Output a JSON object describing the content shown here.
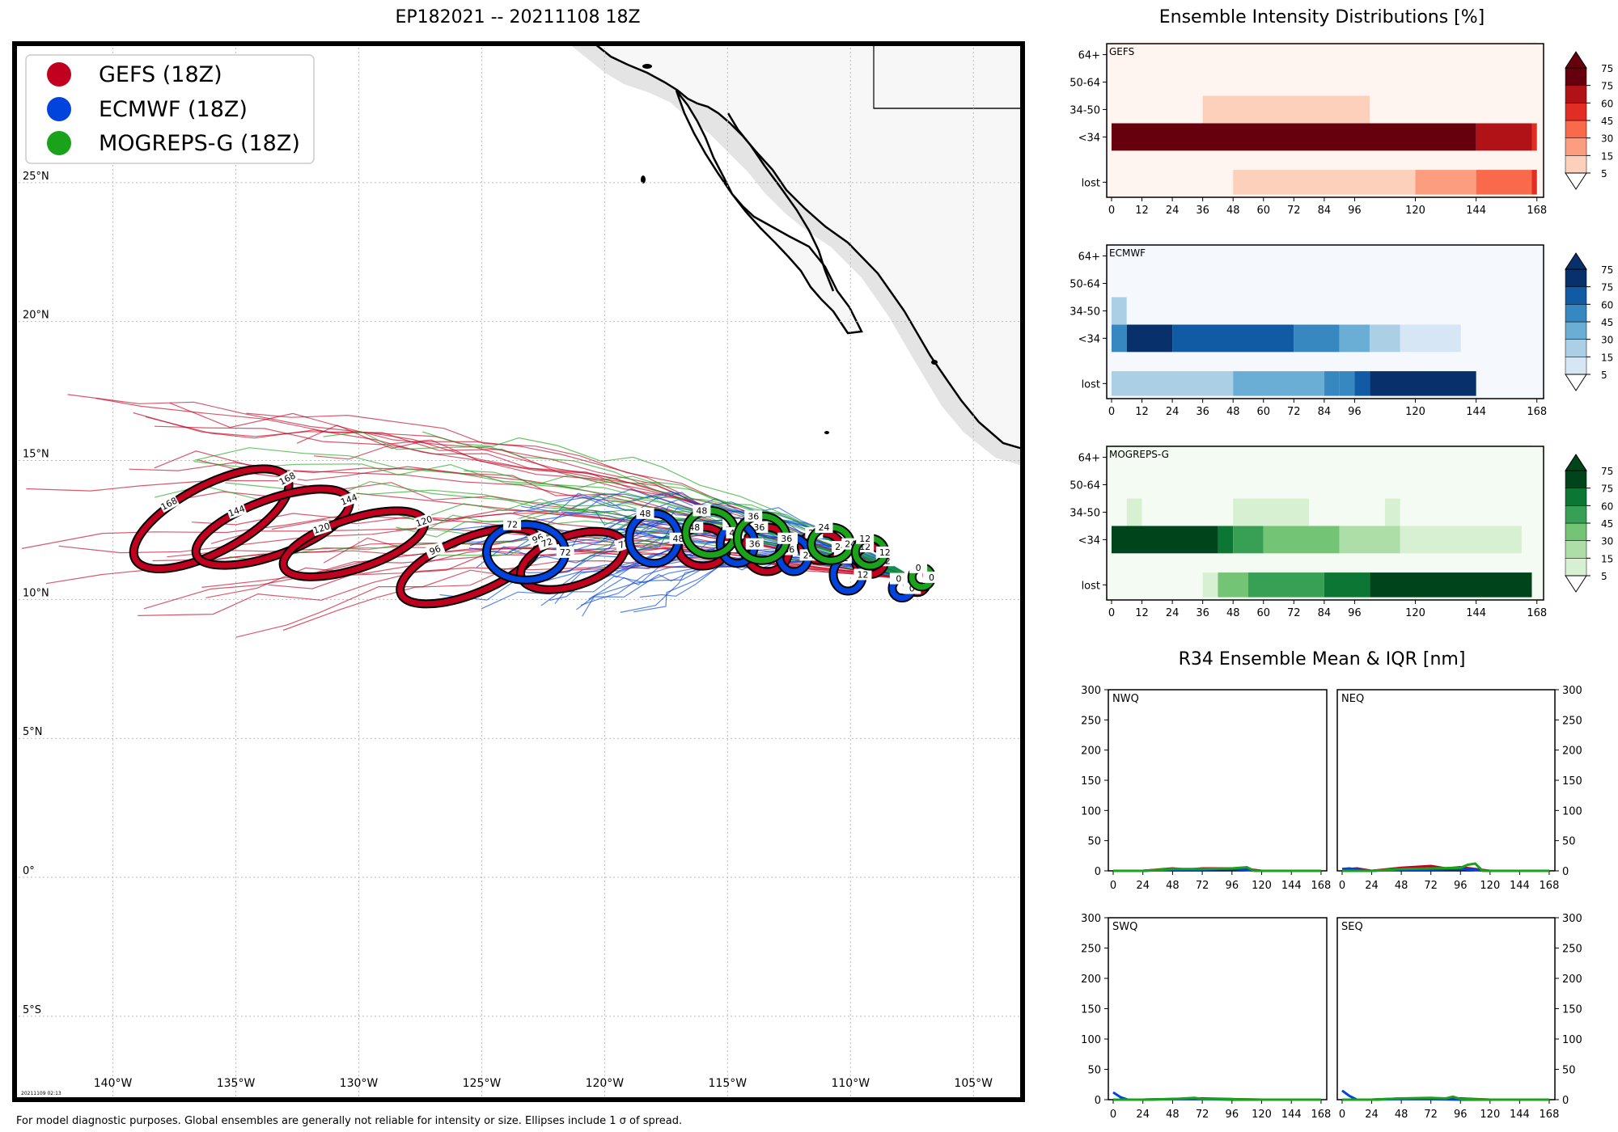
{
  "figure": {
    "map_title": "EP182021 -- 20211108 18Z",
    "intensity_title": "Ensemble Intensity Distributions [%]",
    "r34_title": "R34 Ensemble Mean & IQR [nm]",
    "footer": "For model diagnostic purposes. Global ensembles are generally not reliable for intensity or size. Ellipses include 1 σ of spread.",
    "timestamp": "20211109 02:13"
  },
  "colors": {
    "gefs": "#c1001f",
    "ecmwf": "#0044dd",
    "mogreps": "#1aa31a",
    "land": "#f7f7f7",
    "grid": "#bbbbbb"
  },
  "legend": [
    {
      "label": "GEFS (18Z)",
      "color": "#c1001f"
    },
    {
      "label": "ECMWF (18Z)",
      "color": "#0044dd"
    },
    {
      "label": "MOGREPS-G (18Z)",
      "color": "#1aa31a"
    }
  ],
  "chart_data": [
    {
      "type": "map",
      "name": "track-map",
      "title": "EP182021 -- 20211108 18Z",
      "lon_range": [
        -144,
        -103
      ],
      "lat_range": [
        -8,
        30
      ],
      "lon_ticks": [
        -140,
        -135,
        -130,
        -125,
        -120,
        -115,
        -110,
        -105
      ],
      "lon_tick_labels": [
        "140°W",
        "135°W",
        "130°W",
        "125°W",
        "120°W",
        "115°W",
        "110°W",
        "105°W"
      ],
      "lat_ticks": [
        -5,
        0,
        5,
        10,
        15,
        20,
        25
      ],
      "lat_tick_labels": [
        "5°S",
        "0°",
        "5°N",
        "10°N",
        "15°N",
        "20°N",
        "25°N"
      ],
      "ellipses": {
        "GEFS": [
          {
            "hr": 0,
            "lon": -107.3,
            "lat": 10.6,
            "rlon": 0.4,
            "rlat": 0.35,
            "rot": 0
          },
          {
            "hr": 12,
            "lon": -109.2,
            "lat": 11.4,
            "rlon": 0.6,
            "rlat": 0.5,
            "rot": 0
          },
          {
            "hr": 24,
            "lon": -111.2,
            "lat": 11.9,
            "rlon": 0.8,
            "rlat": 0.5,
            "rot": 0
          },
          {
            "hr": 36,
            "lon": -113.4,
            "lat": 11.8,
            "rlon": 0.9,
            "rlat": 0.8,
            "rot": 0
          },
          {
            "hr": 48,
            "lon": -116.0,
            "lat": 11.9,
            "rlon": 1.0,
            "rlat": 0.7,
            "rot": 0
          },
          {
            "hr": 72,
            "lon": -121.3,
            "lat": 11.4,
            "rlon": 2.2,
            "rlat": 0.9,
            "rot": -18
          },
          {
            "hr": 96,
            "lon": -125.5,
            "lat": 11.2,
            "rlon": 3.0,
            "rlat": 1.0,
            "rot": -22
          },
          {
            "hr": 120,
            "lon": -130.2,
            "lat": 12.0,
            "rlon": 3.0,
            "rlat": 0.9,
            "rot": -18
          },
          {
            "hr": 144,
            "lon": -133.5,
            "lat": 12.6,
            "rlon": 3.3,
            "rlat": 1.0,
            "rot": -20
          },
          {
            "hr": 168,
            "lon": -136.0,
            "lat": 12.9,
            "rlon": 3.5,
            "rlat": 1.2,
            "rot": -28
          }
        ],
        "ECMWF": [
          {
            "hr": 0,
            "lon": -107.9,
            "lat": 10.4,
            "rlon": 0.4,
            "rlat": 0.35,
            "rot": 0
          },
          {
            "hr": 12,
            "lon": -110.1,
            "lat": 10.9,
            "rlon": 0.6,
            "rlat": 0.6,
            "rot": 0
          },
          {
            "hr": 24,
            "lon": -112.3,
            "lat": 11.6,
            "rlon": 0.6,
            "rlat": 0.6,
            "rot": 0
          },
          {
            "hr": 36,
            "lon": -114.6,
            "lat": 12.0,
            "rlon": 0.7,
            "rlat": 0.7,
            "rot": 0
          },
          {
            "hr": 48,
            "lon": -118.0,
            "lat": 12.2,
            "rlon": 1.0,
            "rlat": 0.9,
            "rot": 0
          },
          {
            "hr": 72,
            "lon": -123.2,
            "lat": 11.7,
            "rlon": 1.6,
            "rlat": 1.0,
            "rot": 0
          }
        ],
        "MOGREPS-G": [
          {
            "hr": 0,
            "lon": -107.1,
            "lat": 10.8,
            "rlon": 0.4,
            "rlat": 0.35,
            "rot": 0
          },
          {
            "hr": 12,
            "lon": -109.2,
            "lat": 11.7,
            "rlon": 0.6,
            "rlat": 0.5,
            "rot": 0
          },
          {
            "hr": 24,
            "lon": -110.8,
            "lat": 12.0,
            "rlon": 0.8,
            "rlat": 0.6,
            "rot": 0
          },
          {
            "hr": 36,
            "lon": -113.6,
            "lat": 12.2,
            "rlon": 1.0,
            "rlat": 0.8,
            "rot": 0
          },
          {
            "hr": 48,
            "lon": -115.7,
            "lat": 12.4,
            "rlon": 1.0,
            "rlat": 0.8,
            "rot": 0
          }
        ]
      }
    },
    {
      "type": "heatmap",
      "name": "GEFS",
      "x_ticks": [
        0,
        12,
        24,
        36,
        48,
        60,
        72,
        84,
        96,
        120,
        144,
        168
      ],
      "y_labels": [
        "lost",
        "<34",
        "34-50",
        "50-64",
        "64+"
      ],
      "colorbar_ticks": [
        5,
        15,
        30,
        45,
        60,
        75
      ],
      "colors": [
        "#fff5f0",
        "#fdd0bc",
        "#fc9d80",
        "#f96a4c",
        "#e22d24",
        "#b11218",
        "#67000d"
      ],
      "rows": {
        "lost": [
          [
            0,
            48,
            0
          ],
          [
            48,
            120,
            1
          ],
          [
            120,
            144,
            2
          ],
          [
            144,
            166,
            3
          ],
          [
            166,
            168,
            4
          ]
        ],
        "<34": [
          [
            0,
            144,
            6
          ],
          [
            144,
            166,
            5
          ],
          [
            166,
            168,
            4
          ]
        ],
        "34-50": [
          [
            0,
            36,
            0
          ],
          [
            36,
            102,
            1
          ],
          [
            102,
            168,
            0
          ]
        ],
        "50-64": [
          [
            0,
            168,
            0
          ]
        ],
        "64+": [
          [
            0,
            168,
            0
          ]
        ]
      }
    },
    {
      "type": "heatmap",
      "name": "ECMWF",
      "x_ticks": [
        0,
        12,
        24,
        36,
        48,
        60,
        72,
        84,
        96,
        120,
        144,
        168
      ],
      "y_labels": [
        "lost",
        "<34",
        "34-50",
        "50-64",
        "64+"
      ],
      "colorbar_ticks": [
        5,
        15,
        30,
        45,
        60,
        75
      ],
      "colors": [
        "#f5f9fe",
        "#d6e6f4",
        "#abd0e6",
        "#6aaed6",
        "#3787c0",
        "#105ba4",
        "#08306b"
      ],
      "rows": {
        "lost": [
          [
            0,
            48,
            2
          ],
          [
            48,
            84,
            3
          ],
          [
            84,
            90,
            4
          ],
          [
            90,
            96,
            4
          ],
          [
            96,
            102,
            5
          ],
          [
            102,
            144,
            6
          ]
        ],
        "<34": [
          [
            0,
            6,
            4
          ],
          [
            6,
            24,
            6
          ],
          [
            24,
            72,
            5
          ],
          [
            72,
            90,
            4
          ],
          [
            90,
            102,
            3
          ],
          [
            102,
            114,
            2
          ],
          [
            114,
            138,
            1
          ],
          [
            138,
            144,
            0
          ]
        ],
        "34-50": [
          [
            0,
            6,
            2
          ],
          [
            6,
            144,
            0
          ]
        ],
        "50-64": [
          [
            0,
            144,
            0
          ]
        ],
        "64+": [
          [
            0,
            144,
            0
          ]
        ]
      }
    },
    {
      "type": "heatmap",
      "name": "MOGREPS-G",
      "x_ticks": [
        0,
        12,
        24,
        36,
        48,
        60,
        72,
        84,
        96,
        120,
        144,
        168
      ],
      "y_labels": [
        "lost",
        "<34",
        "34-50",
        "50-64",
        "64+"
      ],
      "colorbar_ticks": [
        5,
        15,
        30,
        45,
        60,
        75
      ],
      "colors": [
        "#f4fbf2",
        "#d8f0d2",
        "#aedea7",
        "#74c476",
        "#37a055",
        "#0c7734",
        "#00441b"
      ],
      "rows": {
        "lost": [
          [
            0,
            36,
            0
          ],
          [
            36,
            42,
            1
          ],
          [
            42,
            54,
            3
          ],
          [
            54,
            84,
            4
          ],
          [
            84,
            102,
            5
          ],
          [
            102,
            166,
            6
          ]
        ],
        "<34": [
          [
            0,
            42,
            6
          ],
          [
            42,
            48,
            5
          ],
          [
            48,
            60,
            4
          ],
          [
            60,
            90,
            3
          ],
          [
            90,
            114,
            2
          ],
          [
            114,
            162,
            1
          ],
          [
            162,
            166,
            0
          ]
        ],
        "34-50": [
          [
            0,
            6,
            0
          ],
          [
            6,
            12,
            1
          ],
          [
            12,
            48,
            0
          ],
          [
            48,
            78,
            1
          ],
          [
            78,
            108,
            0
          ],
          [
            108,
            114,
            1
          ],
          [
            114,
            166,
            0
          ]
        ],
        "50-64": [
          [
            0,
            166,
            0
          ]
        ],
        "64+": [
          [
            0,
            166,
            0
          ]
        ]
      }
    },
    {
      "type": "line",
      "name": "NWQ",
      "x_ticks": [
        0,
        24,
        48,
        72,
        96,
        120,
        144,
        168
      ],
      "y_ticks": [
        0,
        50,
        100,
        150,
        200,
        250,
        300
      ],
      "ylim": [
        0,
        300
      ],
      "series": [
        {
          "name": "GEFS",
          "x": [
            0,
            24,
            48,
            60,
            72,
            96,
            108,
            120,
            168
          ],
          "y": [
            0,
            0,
            4,
            2,
            4,
            4,
            3,
            0,
            0
          ]
        },
        {
          "name": "ECMWF",
          "x": [
            0,
            24,
            48,
            72,
            96,
            120,
            168
          ],
          "y": [
            0,
            0,
            2,
            2,
            3,
            0,
            0
          ]
        },
        {
          "name": "MOGREPS-G",
          "x": [
            0,
            24,
            48,
            72,
            96,
            108,
            114,
            120,
            168
          ],
          "y": [
            0,
            0,
            3,
            3,
            4,
            6,
            0,
            0,
            0
          ]
        }
      ]
    },
    {
      "type": "line",
      "name": "NEQ",
      "x_ticks": [
        0,
        24,
        48,
        72,
        96,
        120,
        144,
        168
      ],
      "y_ticks": [
        0,
        50,
        100,
        150,
        200,
        250,
        300
      ],
      "ylim": [
        0,
        300
      ],
      "series": [
        {
          "name": "GEFS",
          "x": [
            0,
            12,
            24,
            48,
            72,
            84,
            96,
            120,
            168
          ],
          "y": [
            2,
            4,
            0,
            5,
            8,
            4,
            6,
            0,
            0
          ]
        },
        {
          "name": "ECMWF",
          "x": [
            0,
            6,
            12,
            24,
            48,
            72,
            96,
            120,
            168
          ],
          "y": [
            3,
            4,
            2,
            0,
            2,
            2,
            3,
            0,
            0
          ]
        },
        {
          "name": "MOGREPS-G",
          "x": [
            0,
            24,
            48,
            72,
            96,
            102,
            108,
            114,
            120,
            168
          ],
          "y": [
            0,
            0,
            3,
            4,
            5,
            10,
            12,
            0,
            0,
            0
          ]
        }
      ]
    },
    {
      "type": "line",
      "name": "SWQ",
      "x_ticks": [
        0,
        24,
        48,
        72,
        96,
        120,
        144,
        168
      ],
      "y_ticks": [
        0,
        50,
        100,
        150,
        200,
        250,
        300
      ],
      "ylim": [
        0,
        300
      ],
      "series": [
        {
          "name": "GEFS",
          "x": [
            0,
            24,
            48,
            72,
            96,
            120,
            168
          ],
          "y": [
            0,
            0,
            1,
            2,
            1,
            0,
            0
          ]
        },
        {
          "name": "ECMWF",
          "x": [
            0,
            6,
            12,
            24,
            48,
            72,
            96,
            168
          ],
          "y": [
            12,
            4,
            0,
            0,
            1,
            1,
            0,
            0
          ]
        },
        {
          "name": "MOGREPS-G",
          "x": [
            0,
            24,
            48,
            66,
            72,
            84,
            120,
            168
          ],
          "y": [
            0,
            0,
            1,
            3,
            1,
            1,
            0,
            0
          ]
        }
      ]
    },
    {
      "type": "line",
      "name": "SEQ",
      "x_ticks": [
        0,
        24,
        48,
        72,
        96,
        120,
        144,
        168
      ],
      "y_ticks": [
        0,
        50,
        100,
        150,
        200,
        250,
        300
      ],
      "ylim": [
        0,
        300
      ],
      "series": [
        {
          "name": "GEFS",
          "x": [
            0,
            24,
            48,
            72,
            96,
            120,
            168
          ],
          "y": [
            0,
            0,
            2,
            2,
            2,
            0,
            0
          ]
        },
        {
          "name": "ECMWF",
          "x": [
            0,
            6,
            12,
            24,
            48,
            72,
            96,
            168
          ],
          "y": [
            15,
            6,
            0,
            0,
            1,
            1,
            0,
            0
          ]
        },
        {
          "name": "MOGREPS-G",
          "x": [
            0,
            24,
            48,
            72,
            84,
            90,
            96,
            120,
            168
          ],
          "y": [
            0,
            0,
            2,
            3,
            2,
            5,
            1,
            0,
            0
          ]
        }
      ]
    }
  ]
}
